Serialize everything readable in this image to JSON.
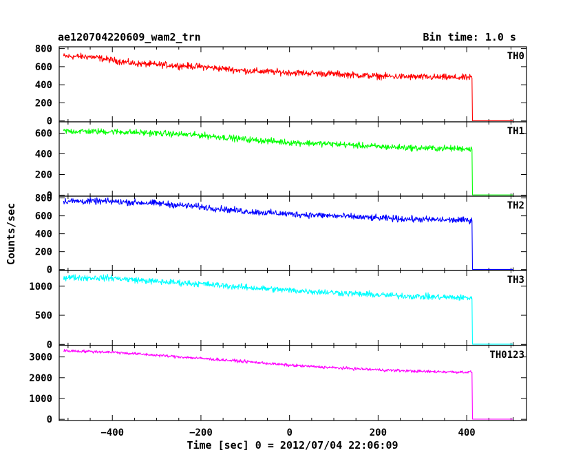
{
  "header": {
    "title": "ae120704220609_wam2_trn",
    "bin_time": "Bin time: 1.0 s"
  },
  "chart_data": {
    "type": "line",
    "xlabel": "Time [sec] 0 = 2012/07/04 22:06:09",
    "ylabel": "Counts/sec",
    "xlim": [
      -520,
      535
    ],
    "xticks": [
      -400,
      -200,
      0,
      200,
      400
    ],
    "x_start": -510,
    "x_drop": 412,
    "x_end": 505,
    "grid": false,
    "panels": [
      {
        "name": "TH0",
        "color": "#ff0000",
        "ylim": [
          -10,
          820
        ],
        "yticks": [
          0,
          200,
          400,
          600,
          800
        ],
        "profile": [
          [
            -510,
            715
          ],
          [
            -450,
            710
          ],
          [
            -350,
            635
          ],
          [
            -200,
            600
          ],
          [
            -100,
            555
          ],
          [
            0,
            535
          ],
          [
            100,
            520
          ],
          [
            200,
            495
          ],
          [
            300,
            485
          ],
          [
            405,
            478
          ]
        ],
        "noise": 30,
        "after_drop": 2
      },
      {
        "name": "TH1",
        "color": "#00ff00",
        "ylim": [
          -10,
          710
        ],
        "yticks": [
          0,
          200,
          400,
          600
        ],
        "profile": [
          [
            -510,
            620
          ],
          [
            -400,
            615
          ],
          [
            -300,
            600
          ],
          [
            -200,
            580
          ],
          [
            -100,
            540
          ],
          [
            0,
            510
          ],
          [
            100,
            495
          ],
          [
            200,
            470
          ],
          [
            300,
            455
          ],
          [
            405,
            450
          ]
        ],
        "noise": 25,
        "after_drop": 2
      },
      {
        "name": "TH2",
        "color": "#0000ff",
        "ylim": [
          -10,
          820
        ],
        "yticks": [
          0,
          200,
          400,
          600,
          800
        ],
        "profile": [
          [
            -510,
            765
          ],
          [
            -400,
            760
          ],
          [
            -300,
            740
          ],
          [
            -200,
            700
          ],
          [
            -100,
            650
          ],
          [
            0,
            620
          ],
          [
            100,
            600
          ],
          [
            200,
            575
          ],
          [
            300,
            560
          ],
          [
            405,
            550
          ]
        ],
        "noise": 30,
        "after_drop": 2
      },
      {
        "name": "TH3",
        "color": "#00ffff",
        "ylim": [
          -20,
          1270
        ],
        "yticks": [
          0,
          500,
          1000
        ],
        "profile": [
          [
            -510,
            1150
          ],
          [
            -400,
            1140
          ],
          [
            -300,
            1080
          ],
          [
            -200,
            1040
          ],
          [
            -100,
            980
          ],
          [
            0,
            930
          ],
          [
            100,
            890
          ],
          [
            200,
            850
          ],
          [
            300,
            820
          ],
          [
            405,
            800
          ]
        ],
        "noise": 45,
        "after_drop": 2
      },
      {
        "name": "TH0123",
        "color": "#ff00ff",
        "ylim": [
          -60,
          3550
        ],
        "yticks": [
          0,
          1000,
          2000,
          3000
        ],
        "profile": [
          [
            -510,
            3300
          ],
          [
            -400,
            3230
          ],
          [
            -300,
            3080
          ],
          [
            -200,
            2930
          ],
          [
            -100,
            2780
          ],
          [
            0,
            2600
          ],
          [
            100,
            2480
          ],
          [
            200,
            2380
          ],
          [
            300,
            2300
          ],
          [
            405,
            2270
          ]
        ],
        "noise": 60,
        "after_drop": 5
      }
    ]
  }
}
